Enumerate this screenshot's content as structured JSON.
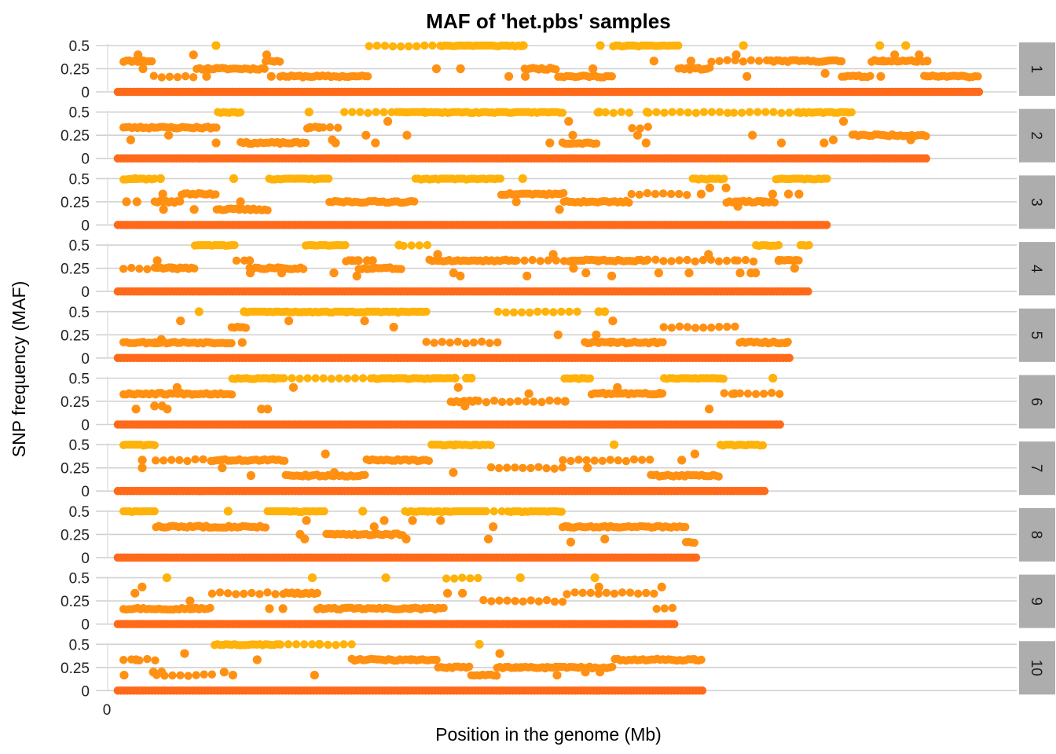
{
  "chart_data": {
    "type": "scatter",
    "title": "MAF of 'het.pbs' samples",
    "xlabel": "Position in the genome (Mb)",
    "ylabel": "SNP frequency (MAF)",
    "x_ticks": [
      "0"
    ],
    "y_ticks": [
      0,
      0.25,
      0.5
    ],
    "y_tick_labels": [
      "0",
      "0.25",
      "0.5"
    ],
    "ylim": [
      0,
      0.5
    ],
    "xlim": [
      0,
      308
    ],
    "grid": "horizontal",
    "color_scale": [
      "#ff6a1a",
      "#ff9012",
      "#ffb20a"
    ],
    "facets": [
      {
        "label": "1",
        "length": 305,
        "seed": 11
      },
      {
        "label": "2",
        "length": 286,
        "seed": 23
      },
      {
        "label": "3",
        "length": 251,
        "seed": 37
      },
      {
        "label": "4",
        "length": 245,
        "seed": 41
      },
      {
        "label": "5",
        "length": 238,
        "seed": 53
      },
      {
        "label": "6",
        "length": 235,
        "seed": 67
      },
      {
        "label": "7",
        "length": 229,
        "seed": 71
      },
      {
        "label": "8",
        "length": 205,
        "seed": 83
      },
      {
        "label": "9",
        "length": 197,
        "seed": 97
      },
      {
        "label": "10",
        "length": 207,
        "seed": 101
      }
    ]
  }
}
